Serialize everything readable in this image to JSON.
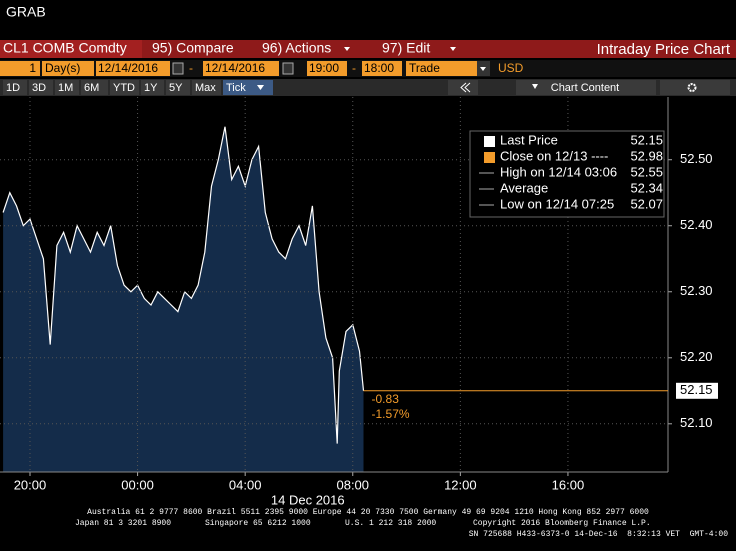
{
  "header": {
    "title": "GRAB"
  },
  "menu_bar": {
    "security": "CL1 COMB Comdty",
    "compare": "95) Compare",
    "actions": "96) Actions",
    "edit": "97) Edit",
    "page_title": "Intraday Price Chart"
  },
  "settings_bar": {
    "period": "1",
    "unit": "Day(s)",
    "start_date": "12/14/2016",
    "separator": "-",
    "end_date": "12/14/2016",
    "start_time": "19:00",
    "end_time": "18:00",
    "mode": "Trade",
    "currency": "USD"
  },
  "range_bar": {
    "buttons": [
      "1D",
      "3D",
      "1M",
      "6M",
      "YTD",
      "1Y",
      "5Y",
      "Max",
      "Tick"
    ],
    "chart_content": "Chart Content"
  },
  "chart_data": {
    "type": "area",
    "xlabel": "14 Dec 2016",
    "xlim": [
      18.885,
      43.72
    ],
    "xticks": [
      {
        "value": 20,
        "label": "20:00"
      },
      {
        "value": 24,
        "label": "00:00"
      },
      {
        "value": 28,
        "label": "04:00"
      },
      {
        "value": 32,
        "label": "08:00"
      },
      {
        "value": 36,
        "label": "12:00"
      },
      {
        "value": 40,
        "label": "16:00"
      }
    ],
    "ylim": [
      52.027,
      52.595
    ],
    "yticks": [
      {
        "value": 52.1,
        "label": "52.10"
      },
      {
        "value": 52.2,
        "label": "52.20"
      },
      {
        "value": 52.3,
        "label": "52.30"
      },
      {
        "value": 52.4,
        "label": "52.40"
      },
      {
        "value": 52.5,
        "label": "52.50"
      }
    ],
    "grid": true,
    "series": [
      {
        "name": "Last Price",
        "color": "#ffffff",
        "fill": "#142c4a",
        "x": [
          19.0,
          19.25,
          19.5,
          19.75,
          20.0,
          20.25,
          20.5,
          20.75,
          21.0,
          21.25,
          21.5,
          21.75,
          22.0,
          22.25,
          22.5,
          22.75,
          23.0,
          23.25,
          23.5,
          23.75,
          24.0,
          24.25,
          24.5,
          24.75,
          25.0,
          25.25,
          25.5,
          25.75,
          26.0,
          26.25,
          26.5,
          26.75,
          27.0,
          27.25,
          27.5,
          27.75,
          28.0,
          28.25,
          28.5,
          28.75,
          29.0,
          29.25,
          29.5,
          29.75,
          30.0,
          30.25,
          30.5,
          30.75,
          31.0,
          31.25,
          31.42,
          31.5,
          31.75,
          32.0,
          32.25,
          32.4
        ],
        "values": [
          52.42,
          52.45,
          52.43,
          52.4,
          52.41,
          52.38,
          52.35,
          52.22,
          52.37,
          52.39,
          52.36,
          52.4,
          52.38,
          52.36,
          52.39,
          52.37,
          52.4,
          52.34,
          52.31,
          52.3,
          52.31,
          52.29,
          52.28,
          52.3,
          52.29,
          52.28,
          52.27,
          52.3,
          52.29,
          52.31,
          52.36,
          52.46,
          52.5,
          52.55,
          52.47,
          52.49,
          52.46,
          52.5,
          52.52,
          52.42,
          52.38,
          52.36,
          52.35,
          52.38,
          52.4,
          52.37,
          52.43,
          52.3,
          52.23,
          52.2,
          52.07,
          52.18,
          52.24,
          52.25,
          52.21,
          52.15
        ]
      }
    ],
    "last_value": 52.15,
    "last_color": "#f39c2b",
    "annotations": [
      "-0.83",
      "-1.57%"
    ],
    "legend_items": [
      {
        "label": "Last Price",
        "value": 52.15,
        "color": "#ffffff"
      },
      {
        "label": "Close on 12/13 ----",
        "value": 52.98,
        "color": "#f39c2b"
      },
      {
        "label": "High on 12/14 03:06",
        "value": 52.55
      },
      {
        "label": "Average",
        "value": 52.34
      },
      {
        "label": "Low on 12/14 07:25",
        "value": 52.07
      }
    ]
  },
  "footer": {
    "line1": "Australia 61 2 9777 8600 Brazil 5511 2395 9000 Europe 44 20 7330 7500 Germany 49 69 9204 1210 Hong Kong 852 2977 6000",
    "line2_left": "Japan 81 3 3201 8900",
    "line2_mid": "Singapore 65 6212 1000",
    "line2_us": "U.S. 1 212 318 2000",
    "line2_right": "Copyright 2016 Bloomberg Finance L.P.",
    "line3": "SN 725688 H433-6373-0 14-Dec-16  8:32:13 VET  GMT-4:00"
  }
}
